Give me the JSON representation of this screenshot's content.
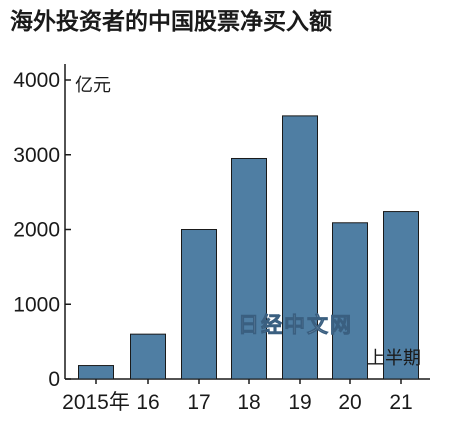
{
  "chart_data": {
    "type": "bar",
    "title": "海外投资者的中国股票净买入额",
    "unit": "亿元",
    "categories": [
      "2015年",
      "16",
      "17",
      "18",
      "19",
      "20",
      "21"
    ],
    "values": [
      180,
      600,
      2000,
      2950,
      3520,
      2090,
      2240
    ],
    "ylim": [
      0,
      4000
    ],
    "yticks": [
      0,
      1000,
      2000,
      3000,
      4000
    ],
    "last_category_note": "上半期",
    "bar_color": "#4f7ea3",
    "grid": false,
    "legend": "none"
  },
  "watermark": "日经中文网"
}
